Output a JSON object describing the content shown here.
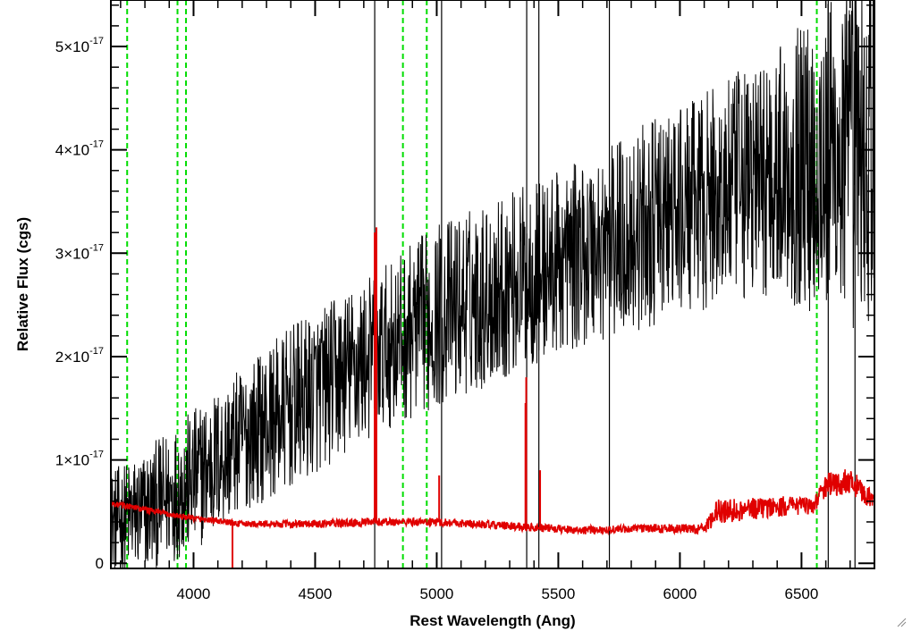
{
  "chart_data": {
    "type": "line",
    "xlabel": "Rest Wavelength (Ang)",
    "ylabel": "Relative Flux (cgs)",
    "xlim": [
      3660,
      6800
    ],
    "ylim": [
      -5e-19,
      5.45e-17
    ],
    "x_ticks": [
      {
        "value": 4000,
        "label": "4000"
      },
      {
        "value": 4500,
        "label": "4500"
      },
      {
        "value": 5000,
        "label": "5000"
      },
      {
        "value": 5500,
        "label": "5500"
      },
      {
        "value": 6000,
        "label": "6000"
      },
      {
        "value": 6500,
        "label": "6500"
      }
    ],
    "y_ticks": [
      {
        "value": 0,
        "mant": "0",
        "exp": ""
      },
      {
        "value": 1e-17,
        "mant": "1×10",
        "exp": "-17"
      },
      {
        "value": 2e-17,
        "mant": "2×10",
        "exp": "-17"
      },
      {
        "value": 3e-17,
        "mant": "3×10",
        "exp": "-17"
      },
      {
        "value": 4e-17,
        "mant": "4×10",
        "exp": "-17"
      },
      {
        "value": 5e-17,
        "mant": "5×10",
        "exp": "-17"
      }
    ],
    "grid": false,
    "series": [
      {
        "role": "spectrum",
        "color": "#000000",
        "x": [
          3660,
          3800,
          4000,
          4200,
          4400,
          4600,
          4800,
          5000,
          5200,
          5400,
          5600,
          5800,
          6000,
          6200,
          6400,
          6600,
          6800
        ],
        "y": [
          4e-18,
          5e-18,
          8e-18,
          1.2e-17,
          1.5e-17,
          1.8e-17,
          2.1e-17,
          2.4e-17,
          2.6e-17,
          2.8e-17,
          3e-17,
          3.2e-17,
          3.4e-17,
          3.6e-17,
          3.8e-17,
          3.9e-17,
          4e-17
        ],
        "noise": [
          5e-18,
          6e-18,
          7e-18,
          7e-18,
          8e-18,
          8e-18,
          8e-18,
          9e-18,
          9e-18,
          9e-18,
          9e-18,
          1e-17,
          1e-17,
          1.1e-17,
          1.2e-17,
          1.6e-17,
          1.8e-17
        ]
      },
      {
        "role": "error",
        "color": "#e00000",
        "x": [
          3660,
          3800,
          3950,
          4200,
          4500,
          4800,
          5000,
          5300,
          5600,
          5900,
          6100,
          6150,
          6400,
          6550,
          6600,
          6700,
          6800
        ],
        "y": [
          5.8e-18,
          5.2e-18,
          4.5e-18,
          3.8e-18,
          3.8e-18,
          4e-18,
          4e-18,
          3.6e-18,
          3.2e-18,
          3.4e-18,
          3.3e-18,
          5e-18,
          5.5e-18,
          5.6e-18,
          7.5e-18,
          8e-18,
          6e-18
        ],
        "noise": [
          3e-19,
          3e-19,
          3e-19,
          3e-19,
          4e-19,
          4e-19,
          4e-19,
          4e-19,
          4e-19,
          4e-19,
          5e-19,
          1.2e-18,
          1e-18,
          8e-19,
          1.2e-18,
          1.2e-18,
          1e-18
        ]
      }
    ],
    "red_spikes": [
      {
        "x": 4160,
        "y": -1e-18
      },
      {
        "x": 4745,
        "y": 3.2e-17
      },
      {
        "x": 4752,
        "y": 3.25e-17
      },
      {
        "x": 5010,
        "y": 8.5e-18
      },
      {
        "x": 5365,
        "y": 1.55e-17
      },
      {
        "x": 5368,
        "y": 1.8e-17
      },
      {
        "x": 5425,
        "y": 9e-18
      }
    ],
    "black_vlines": [
      4745,
      5020,
      5370,
      5420,
      5710,
      6610,
      6720
    ],
    "green_vlines": [
      3727,
      3934,
      3969,
      4861,
      4959,
      6563
    ],
    "colors": {
      "spectrum": "#000000",
      "error": "#e00000",
      "marker_lines": "#00dd00"
    }
  }
}
